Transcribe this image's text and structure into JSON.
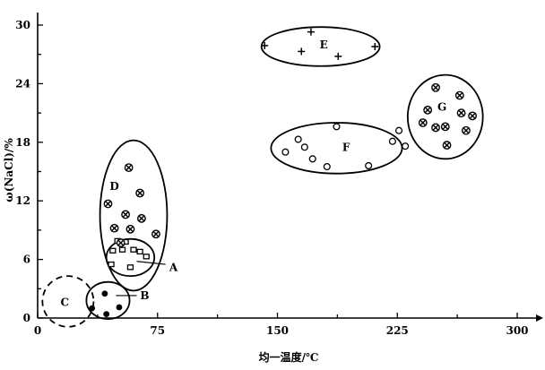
{
  "chart_data": {
    "type": "scatter",
    "title": "",
    "xlabel": "均一温度/℃",
    "ylabel": "ω(NaCl)/%",
    "xlim": [
      0,
      300
    ],
    "ylim": [
      0,
      30
    ],
    "xticks": [
      0,
      75,
      150,
      225,
      300
    ],
    "yticks": [
      0,
      6,
      12,
      18,
      24,
      30
    ],
    "xtick_labels": [
      "0",
      "75",
      "150",
      "225",
      "300"
    ],
    "ytick_labels": [
      "0",
      "6",
      "12",
      "18",
      "24",
      "30"
    ],
    "grid": false,
    "groups": [
      {
        "name": "A",
        "marker": "square",
        "ellipse": {
          "cx": 58,
          "cy": 6.2,
          "rx": 15,
          "ry": 1.9,
          "dashed": false
        },
        "label": {
          "x": 85,
          "y": 5.2
        },
        "leader": [
          [
            62,
            5.8
          ],
          [
            80,
            5.5
          ]
        ],
        "points": [
          [
            47,
            6.9
          ],
          [
            50,
            7.9
          ],
          [
            53,
            7.0
          ],
          [
            55,
            7.8
          ],
          [
            58,
            5.2
          ],
          [
            60,
            7.0
          ],
          [
            64,
            6.8
          ],
          [
            68,
            6.3
          ],
          [
            46,
            5.5
          ]
        ]
      },
      {
        "name": "B",
        "marker": "filled-circle",
        "ellipse": {
          "cx": 44,
          "cy": 1.8,
          "rx": 13.5,
          "ry": 1.9,
          "dashed": false
        },
        "label": {
          "x": 67,
          "y": 2.3
        },
        "leader": [
          [
            49,
            2.3
          ],
          [
            62,
            2.3
          ]
        ],
        "points": [
          [
            34,
            1.0
          ],
          [
            42,
            2.5
          ],
          [
            43,
            0.4
          ],
          [
            51,
            1.1
          ]
        ]
      },
      {
        "name": "C",
        "marker": "none",
        "ellipse": {
          "cx": 19,
          "cy": 1.7,
          "rx": 16,
          "ry": 2.6,
          "dashed": true
        },
        "label": {
          "x": 17,
          "y": 1.6
        },
        "points": []
      },
      {
        "name": "D",
        "marker": "cross-circle",
        "ellipse": {
          "cx": 60,
          "cy": 10.5,
          "rx": 21,
          "ry": 7.7,
          "dashed": false
        },
        "label": {
          "x": 48,
          "y": 13.5
        },
        "points": [
          [
            44,
            11.7
          ],
          [
            57,
            15.4
          ],
          [
            64,
            12.8
          ],
          [
            55,
            10.6
          ],
          [
            65,
            10.2
          ],
          [
            48,
            9.2
          ],
          [
            58,
            9.1
          ],
          [
            74,
            8.6
          ],
          [
            52,
            7.7
          ]
        ]
      },
      {
        "name": "E",
        "marker": "plus",
        "ellipse": {
          "cx": 177,
          "cy": 27.8,
          "rx": 37,
          "ry": 2.0,
          "dashed": false
        },
        "label": {
          "x": 179,
          "y": 28.0
        },
        "points": [
          [
            142,
            27.9
          ],
          [
            165,
            27.3
          ],
          [
            171,
            29.3
          ],
          [
            188,
            26.8
          ],
          [
            211,
            27.8
          ]
        ]
      },
      {
        "name": "F",
        "marker": "open-circle",
        "ellipse": {
          "cx": 187,
          "cy": 17.4,
          "rx": 41,
          "ry": 2.6,
          "dashed": false
        },
        "label": {
          "x": 193,
          "y": 17.5
        },
        "points": [
          [
            155,
            17.0
          ],
          [
            163,
            18.3
          ],
          [
            167,
            17.5
          ],
          [
            172,
            16.3
          ],
          [
            181,
            15.5
          ],
          [
            187,
            19.6
          ],
          [
            207,
            15.6
          ],
          [
            222,
            18.1
          ],
          [
            226,
            19.2
          ],
          [
            230,
            17.6
          ]
        ]
      },
      {
        "name": "G",
        "marker": "cross-circle",
        "ellipse": {
          "cx": 255,
          "cy": 20.6,
          "rx": 23.5,
          "ry": 4.3,
          "dashed": false
        },
        "label": {
          "x": 253,
          "y": 21.6
        },
        "points": [
          [
            249,
            23.6
          ],
          [
            264,
            22.8
          ],
          [
            244,
            21.3
          ],
          [
            255,
            19.6
          ],
          [
            265,
            21.0
          ],
          [
            241,
            20.0
          ],
          [
            249,
            19.5
          ],
          [
            272,
            20.7
          ],
          [
            256,
            17.7
          ],
          [
            268,
            19.2
          ]
        ]
      }
    ]
  }
}
